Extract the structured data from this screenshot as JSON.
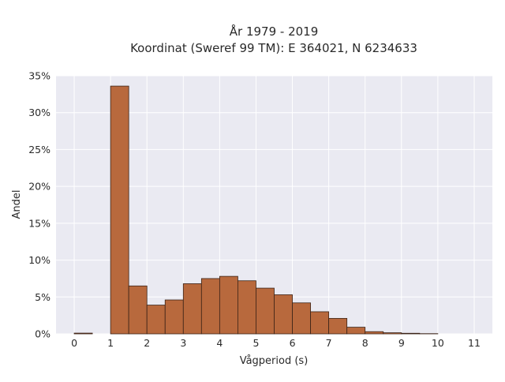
{
  "chart_data": {
    "type": "bar",
    "title_lines": [
      "År 1979 - 2019",
      "Koordinat (Sweref 99 TM): E 364021, N 6234633"
    ],
    "xlabel": "Vågperiod (s)",
    "ylabel": "Andel",
    "xlim": [
      -0.5,
      11.5
    ],
    "ylim": [
      0,
      35
    ],
    "x_ticks": [
      "0",
      "1",
      "2",
      "3",
      "4",
      "5",
      "6",
      "7",
      "8",
      "9",
      "10",
      "11"
    ],
    "y_ticks": [
      "0%",
      "5%",
      "10%",
      "15%",
      "20%",
      "25%",
      "30%",
      "35%"
    ],
    "bin_width": 0.5,
    "bins": [
      {
        "start": 0.0,
        "value": 0.1
      },
      {
        "start": 0.5,
        "value": 0.0
      },
      {
        "start": 1.0,
        "value": 33.6
      },
      {
        "start": 1.5,
        "value": 6.5
      },
      {
        "start": 2.0,
        "value": 3.9
      },
      {
        "start": 2.5,
        "value": 4.6
      },
      {
        "start": 3.0,
        "value": 6.8
      },
      {
        "start": 3.5,
        "value": 7.5
      },
      {
        "start": 4.0,
        "value": 7.8
      },
      {
        "start": 4.5,
        "value": 7.2
      },
      {
        "start": 5.0,
        "value": 6.2
      },
      {
        "start": 5.5,
        "value": 5.3
      },
      {
        "start": 6.0,
        "value": 4.2
      },
      {
        "start": 6.5,
        "value": 3.0
      },
      {
        "start": 7.0,
        "value": 2.1
      },
      {
        "start": 7.5,
        "value": 0.9
      },
      {
        "start": 8.0,
        "value": 0.3
      },
      {
        "start": 8.5,
        "value": 0.15
      },
      {
        "start": 9.0,
        "value": 0.08
      },
      {
        "start": 9.5,
        "value": 0.03
      }
    ],
    "grid": true,
    "legend": "none",
    "colors": {
      "bar_fill": "#b8693d",
      "bar_stroke": "#3b2317",
      "plot_bg": "#eaeaf2",
      "grid": "#ffffff"
    }
  }
}
